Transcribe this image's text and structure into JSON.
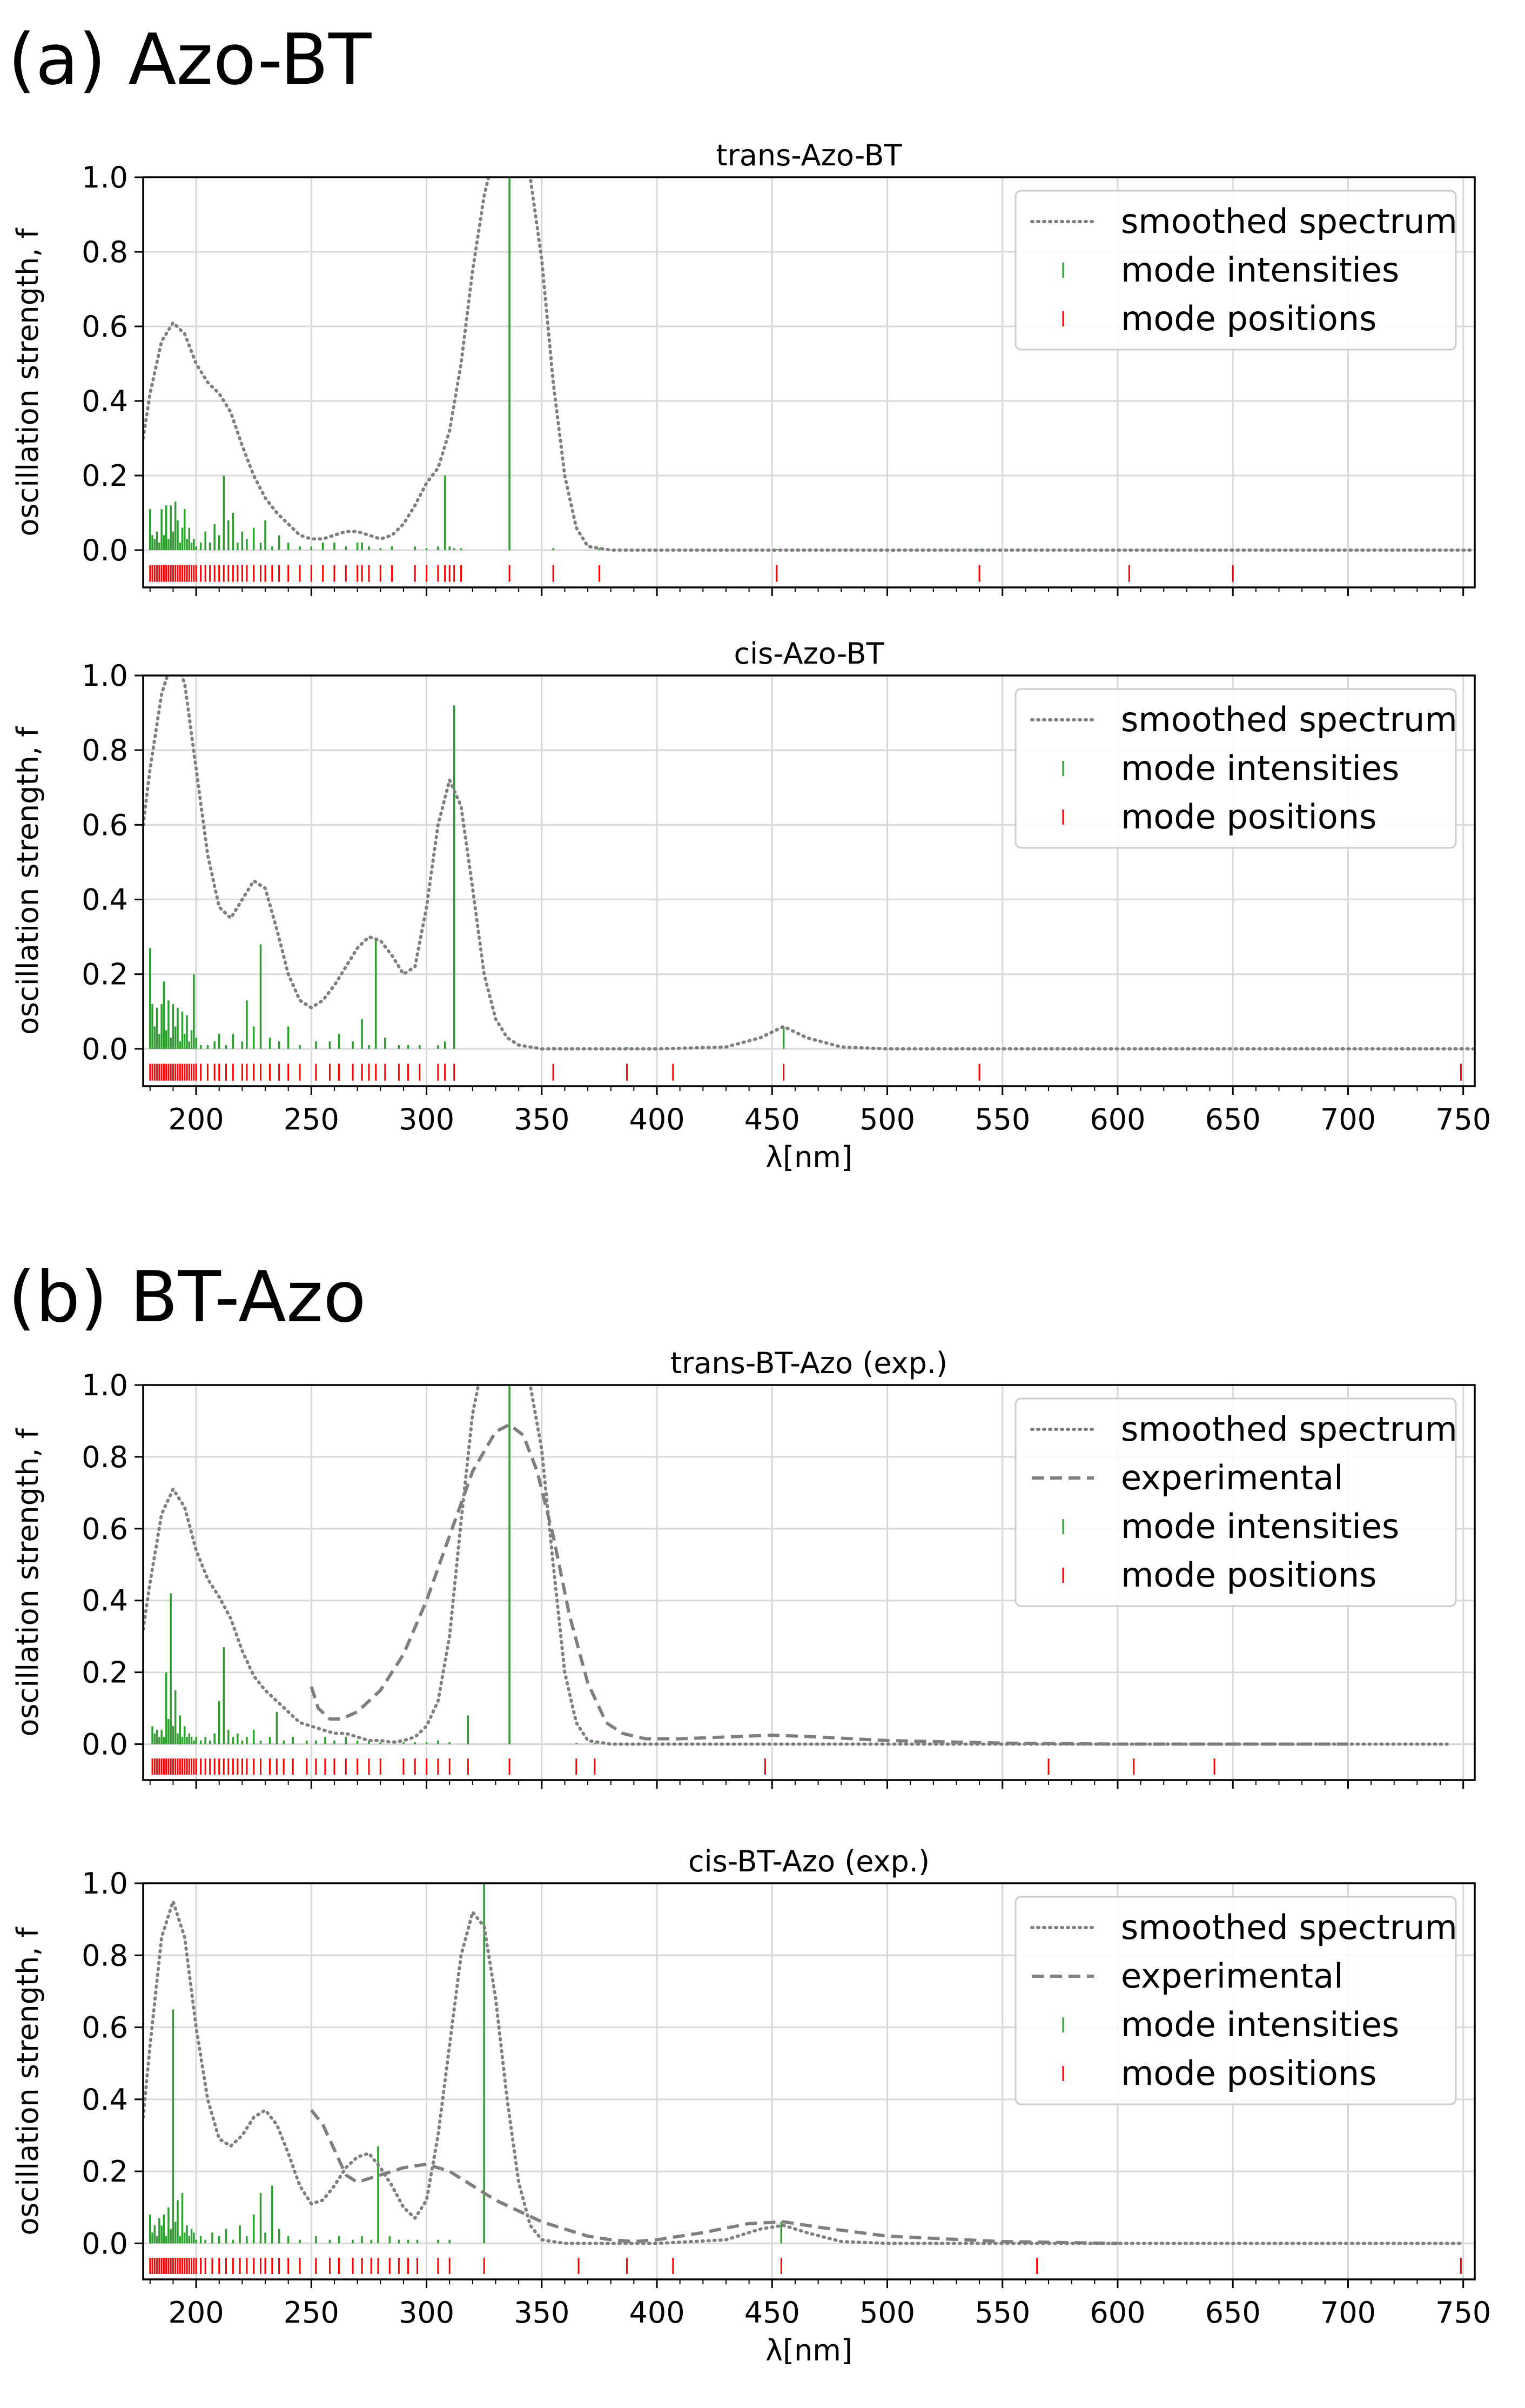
{
  "figure": {
    "section_labels": [
      "(a) Azo-BT",
      "(b) BT-Azo"
    ]
  },
  "style": {
    "smoothed_color": "#7f7f7f",
    "experimental_color": "#7f7f7f",
    "intensity_color": "#2ca02c",
    "position_color": "#ff0000",
    "grid_color": "#d9d9d9",
    "legend_border": "#cccccc"
  },
  "chart_data": [
    {
      "type": "line",
      "title": "trans-Azo-BT",
      "xlabel": "",
      "ylabel": "oscillation strength, f",
      "xlim": [
        177,
        755
      ],
      "ylim": [
        -0.1,
        1.0
      ],
      "xticks": [
        200,
        250,
        300,
        350,
        400,
        450,
        500,
        550,
        600,
        650,
        700,
        750
      ],
      "xtick_labels": [],
      "yticks": [
        0.0,
        0.2,
        0.4,
        0.6,
        0.8,
        1.0
      ],
      "ytick_labels": [
        "0.0",
        "0.2",
        "0.4",
        "0.6",
        "0.8",
        "1.0"
      ],
      "legend": [
        "smoothed spectrum",
        "mode intensities",
        "mode positions"
      ],
      "smoothed_spectrum": {
        "x": [
          177,
          180,
          185,
          190,
          195,
          200,
          205,
          210,
          215,
          220,
          225,
          230,
          235,
          240,
          245,
          250,
          255,
          260,
          265,
          270,
          275,
          280,
          285,
          290,
          295,
          300,
          305,
          310,
          315,
          320,
          325,
          330,
          335,
          340,
          345,
          350,
          355,
          360,
          365,
          370,
          380,
          400,
          450,
          500,
          600,
          700,
          755
        ],
        "y": [
          0.3,
          0.42,
          0.56,
          0.61,
          0.58,
          0.5,
          0.45,
          0.42,
          0.37,
          0.28,
          0.2,
          0.14,
          0.1,
          0.07,
          0.04,
          0.03,
          0.03,
          0.04,
          0.05,
          0.05,
          0.04,
          0.03,
          0.04,
          0.07,
          0.12,
          0.18,
          0.22,
          0.32,
          0.5,
          0.75,
          0.95,
          1.08,
          1.12,
          1.1,
          1.0,
          0.78,
          0.45,
          0.2,
          0.06,
          0.01,
          0.0,
          0.0,
          0.0,
          0.0,
          0.0,
          0.0,
          0.0
        ]
      },
      "mode_intensities": {
        "x": [
          180,
          181,
          182,
          183,
          184,
          185,
          186,
          187,
          188,
          189,
          190,
          191,
          192,
          193,
          194,
          195,
          196,
          197,
          198,
          199,
          200,
          202,
          204,
          206,
          208,
          210,
          212,
          214,
          216,
          218,
          220,
          222,
          225,
          228,
          230,
          233,
          236,
          240,
          245,
          250,
          255,
          260,
          265,
          270,
          272,
          275,
          280,
          285,
          295,
          300,
          305,
          308,
          310,
          312,
          315,
          336,
          355,
          375,
          452,
          540,
          605,
          650
        ],
        "y": [
          0.11,
          0.04,
          0.03,
          0.05,
          0.02,
          0.11,
          0.04,
          0.12,
          0.03,
          0.12,
          0.05,
          0.13,
          0.08,
          0.02,
          0.06,
          0.11,
          0.03,
          0.06,
          0.02,
          0.03,
          0.01,
          0.02,
          0.05,
          0.02,
          0.07,
          0.04,
          0.2,
          0.08,
          0.1,
          0.02,
          0.05,
          0.03,
          0.06,
          0.02,
          0.08,
          0.01,
          0.04,
          0.02,
          0.01,
          0.01,
          0.02,
          0.02,
          0.01,
          0.02,
          0.02,
          0.01,
          0.005,
          0.01,
          0.01,
          0.005,
          0.01,
          0.2,
          0.01,
          0.005,
          0.005,
          1.0,
          0.005,
          0.005,
          0.003,
          0.002,
          0.002,
          0.002
        ]
      }
    },
    {
      "type": "line",
      "title": "cis-Azo-BT",
      "xlabel": "λ[nm]",
      "ylabel": "oscillation strength, f",
      "xlim": [
        177,
        755
      ],
      "ylim": [
        -0.1,
        1.0
      ],
      "xticks": [
        200,
        250,
        300,
        350,
        400,
        450,
        500,
        550,
        600,
        650,
        700,
        750
      ],
      "xtick_labels": [
        "200",
        "250",
        "300",
        "350",
        "400",
        "450",
        "500",
        "550",
        "600",
        "650",
        "700",
        "750"
      ],
      "yticks": [
        0.0,
        0.2,
        0.4,
        0.6,
        0.8,
        1.0
      ],
      "ytick_labels": [
        "0.0",
        "0.2",
        "0.4",
        "0.6",
        "0.8",
        "1.0"
      ],
      "legend": [
        "smoothed spectrum",
        "mode intensities",
        "mode positions"
      ],
      "smoothed_spectrum": {
        "x": [
          177,
          180,
          185,
          190,
          195,
          200,
          205,
          210,
          215,
          220,
          225,
          230,
          235,
          240,
          245,
          250,
          255,
          260,
          265,
          270,
          275,
          280,
          285,
          290,
          295,
          300,
          305,
          310,
          315,
          320,
          325,
          330,
          335,
          340,
          350,
          360,
          400,
          430,
          445,
          455,
          465,
          480,
          500,
          600,
          700,
          755
        ],
        "y": [
          0.6,
          0.75,
          0.95,
          1.05,
          0.98,
          0.75,
          0.52,
          0.38,
          0.35,
          0.4,
          0.45,
          0.43,
          0.32,
          0.2,
          0.13,
          0.11,
          0.13,
          0.17,
          0.22,
          0.27,
          0.3,
          0.29,
          0.25,
          0.2,
          0.22,
          0.38,
          0.6,
          0.72,
          0.65,
          0.43,
          0.2,
          0.08,
          0.03,
          0.01,
          0.0,
          0.0,
          0.0,
          0.005,
          0.03,
          0.06,
          0.03,
          0.005,
          0.0,
          0.0,
          0.0,
          0.0
        ]
      },
      "mode_intensities": {
        "x": [
          180,
          181,
          182,
          183,
          184,
          185,
          186,
          187,
          188,
          189,
          190,
          191,
          192,
          193,
          194,
          195,
          196,
          197,
          198,
          199,
          200,
          202,
          205,
          208,
          210,
          213,
          216,
          220,
          222,
          225,
          228,
          232,
          236,
          240,
          245,
          252,
          258,
          262,
          268,
          272,
          275,
          278,
          282,
          288,
          292,
          297,
          305,
          308,
          312,
          355,
          387,
          407,
          455,
          540,
          749
        ],
        "y": [
          0.27,
          0.12,
          0.06,
          0.11,
          0.04,
          0.12,
          0.18,
          0.05,
          0.13,
          0.03,
          0.12,
          0.06,
          0.11,
          0.02,
          0.1,
          0.04,
          0.09,
          0.02,
          0.05,
          0.2,
          0.03,
          0.01,
          0.01,
          0.02,
          0.04,
          0.01,
          0.04,
          0.02,
          0.13,
          0.06,
          0.28,
          0.03,
          0.02,
          0.06,
          0.01,
          0.02,
          0.02,
          0.04,
          0.02,
          0.08,
          0.01,
          0.29,
          0.03,
          0.01,
          0.01,
          0.01,
          0.01,
          0.02,
          0.92,
          0.005,
          0.005,
          0.005,
          0.06,
          0.002,
          0.002
        ]
      }
    },
    {
      "type": "line",
      "title": "trans-BT-Azo (exp.)",
      "xlabel": "",
      "ylabel": "oscillation strength, f",
      "xlim": [
        177,
        755
      ],
      "ylim": [
        -0.1,
        1.0
      ],
      "xticks": [
        200,
        250,
        300,
        350,
        400,
        450,
        500,
        550,
        600,
        650,
        700,
        750
      ],
      "xtick_labels": [],
      "yticks": [
        0.0,
        0.2,
        0.4,
        0.6,
        0.8,
        1.0
      ],
      "ytick_labels": [
        "0.0",
        "0.2",
        "0.4",
        "0.6",
        "0.8",
        "1.0"
      ],
      "legend": [
        "smoothed spectrum",
        "experimental",
        "mode intensities",
        "mode positions"
      ],
      "smoothed_spectrum": {
        "x": [
          177,
          180,
          185,
          190,
          195,
          200,
          205,
          210,
          215,
          220,
          225,
          230,
          235,
          240,
          245,
          250,
          255,
          260,
          265,
          270,
          275,
          280,
          285,
          290,
          295,
          300,
          305,
          310,
          315,
          320,
          325,
          330,
          335,
          340,
          345,
          350,
          355,
          360,
          365,
          370,
          380,
          400,
          450,
          500,
          600,
          700,
          743
        ],
        "y": [
          0.32,
          0.45,
          0.64,
          0.71,
          0.66,
          0.54,
          0.46,
          0.41,
          0.35,
          0.26,
          0.19,
          0.15,
          0.12,
          0.09,
          0.06,
          0.05,
          0.04,
          0.03,
          0.03,
          0.02,
          0.01,
          0.01,
          0.005,
          0.01,
          0.02,
          0.05,
          0.12,
          0.3,
          0.62,
          0.92,
          1.08,
          1.13,
          1.12,
          1.08,
          1.0,
          0.82,
          0.5,
          0.2,
          0.06,
          0.01,
          0.0,
          0.0,
          0.0,
          0.0,
          0.0,
          0.0,
          0.0
        ]
      },
      "experimental": {
        "x": [
          250,
          253,
          258,
          263,
          270,
          280,
          290,
          300,
          310,
          320,
          330,
          336,
          342,
          348,
          355,
          362,
          370,
          378,
          385,
          395,
          410,
          430,
          450,
          470,
          500,
          550,
          600,
          650,
          700
        ],
        "y": [
          0.16,
          0.1,
          0.07,
          0.07,
          0.09,
          0.15,
          0.25,
          0.4,
          0.58,
          0.76,
          0.87,
          0.89,
          0.86,
          0.76,
          0.58,
          0.36,
          0.17,
          0.06,
          0.03,
          0.015,
          0.015,
          0.02,
          0.025,
          0.02,
          0.01,
          0.003,
          0.0,
          0.0,
          0.0
        ]
      },
      "mode_intensities": {
        "x": [
          181,
          182,
          183,
          184,
          185,
          186,
          187,
          188,
          189,
          190,
          191,
          192,
          193,
          194,
          195,
          196,
          197,
          198,
          199,
          200,
          202,
          204,
          206,
          208,
          210,
          212,
          214,
          216,
          218,
          220,
          222,
          225,
          228,
          232,
          235,
          238,
          242,
          248,
          252,
          256,
          260,
          265,
          270,
          275,
          280,
          290,
          295,
          300,
          305,
          310,
          318,
          336,
          365,
          373,
          447,
          570,
          607,
          642
        ],
        "y": [
          0.05,
          0.03,
          0.04,
          0.02,
          0.04,
          0.02,
          0.2,
          0.07,
          0.42,
          0.05,
          0.15,
          0.03,
          0.08,
          0.02,
          0.05,
          0.02,
          0.03,
          0.02,
          0.01,
          0.02,
          0.01,
          0.02,
          0.01,
          0.03,
          0.12,
          0.27,
          0.04,
          0.02,
          0.03,
          0.01,
          0.02,
          0.04,
          0.01,
          0.02,
          0.09,
          0.01,
          0.02,
          0.01,
          0.01,
          0.02,
          0.01,
          0.02,
          0.01,
          0.01,
          0.005,
          0.005,
          0.005,
          0.005,
          0.01,
          0.005,
          0.08,
          1.0,
          0.003,
          0.003,
          0.002,
          0.002,
          0.002,
          0.002
        ]
      }
    },
    {
      "type": "line",
      "title": "cis-BT-Azo (exp.)",
      "xlabel": "λ[nm]",
      "ylabel": "oscillation strength, f",
      "xlim": [
        177,
        755
      ],
      "ylim": [
        -0.1,
        1.0
      ],
      "xticks": [
        200,
        250,
        300,
        350,
        400,
        450,
        500,
        550,
        600,
        650,
        700,
        750
      ],
      "xtick_labels": [
        "200",
        "250",
        "300",
        "350",
        "400",
        "450",
        "500",
        "550",
        "600",
        "650",
        "700",
        "750"
      ],
      "yticks": [
        0.0,
        0.2,
        0.4,
        0.6,
        0.8,
        1.0
      ],
      "ytick_labels": [
        "0.0",
        "0.2",
        "0.4",
        "0.6",
        "0.8",
        "1.0"
      ],
      "legend": [
        "smoothed spectrum",
        "experimental",
        "mode intensities",
        "mode positions"
      ],
      "smoothed_spectrum": {
        "x": [
          177,
          180,
          185,
          190,
          195,
          200,
          205,
          210,
          215,
          220,
          225,
          230,
          235,
          240,
          245,
          250,
          255,
          260,
          265,
          270,
          275,
          280,
          285,
          290,
          295,
          300,
          305,
          310,
          315,
          320,
          325,
          330,
          335,
          340,
          345,
          350,
          360,
          380,
          400,
          430,
          445,
          455,
          465,
          480,
          500,
          600,
          700,
          750
        ],
        "y": [
          0.35,
          0.55,
          0.85,
          0.95,
          0.85,
          0.6,
          0.4,
          0.29,
          0.27,
          0.3,
          0.35,
          0.37,
          0.33,
          0.25,
          0.16,
          0.11,
          0.12,
          0.16,
          0.21,
          0.24,
          0.25,
          0.21,
          0.16,
          0.1,
          0.07,
          0.12,
          0.3,
          0.55,
          0.8,
          0.92,
          0.88,
          0.68,
          0.4,
          0.17,
          0.05,
          0.01,
          0.0,
          0.0,
          0.0,
          0.01,
          0.04,
          0.05,
          0.03,
          0.005,
          0.0,
          0.0,
          0.0,
          0.0
        ]
      },
      "experimental": {
        "x": [
          250,
          255,
          260,
          265,
          270,
          280,
          290,
          300,
          310,
          320,
          330,
          340,
          350,
          360,
          370,
          380,
          390,
          400,
          420,
          440,
          455,
          470,
          500,
          550,
          600
        ],
        "y": [
          0.37,
          0.33,
          0.26,
          0.19,
          0.17,
          0.19,
          0.21,
          0.22,
          0.2,
          0.16,
          0.12,
          0.09,
          0.06,
          0.04,
          0.02,
          0.01,
          0.005,
          0.01,
          0.03,
          0.055,
          0.06,
          0.045,
          0.02,
          0.005,
          0.0
        ]
      },
      "mode_intensities": {
        "x": [
          180,
          181,
          182,
          183,
          184,
          185,
          186,
          187,
          188,
          189,
          190,
          191,
          192,
          193,
          194,
          195,
          196,
          197,
          198,
          199,
          200,
          202,
          204,
          207,
          210,
          213,
          216,
          219,
          222,
          225,
          228,
          230,
          233,
          236,
          240,
          245,
          252,
          258,
          262,
          268,
          272,
          276,
          279,
          284,
          288,
          292,
          296,
          305,
          310,
          325,
          366,
          387,
          407,
          454,
          565,
          749
        ],
        "y": [
          0.08,
          0.03,
          0.05,
          0.02,
          0.07,
          0.05,
          0.08,
          0.02,
          0.1,
          0.04,
          0.65,
          0.06,
          0.12,
          0.02,
          0.14,
          0.03,
          0.05,
          0.02,
          0.04,
          0.03,
          0.01,
          0.02,
          0.01,
          0.03,
          0.02,
          0.04,
          0.01,
          0.05,
          0.02,
          0.08,
          0.14,
          0.03,
          0.16,
          0.04,
          0.02,
          0.01,
          0.02,
          0.01,
          0.02,
          0.01,
          0.02,
          0.01,
          0.27,
          0.02,
          0.01,
          0.01,
          0.01,
          0.01,
          0.01,
          1.0,
          0.003,
          0.003,
          0.003,
          0.06,
          0.002,
          0.002
        ]
      }
    }
  ]
}
